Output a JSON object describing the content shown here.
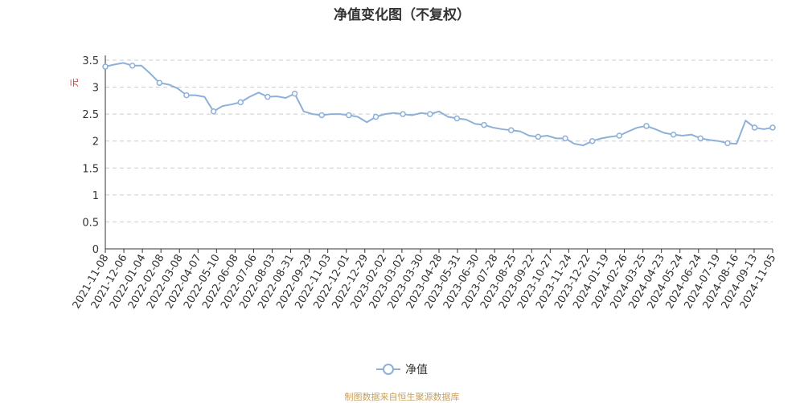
{
  "chart_data": {
    "type": "line",
    "title": "净值变化图（不复权）",
    "ylabel": "元",
    "ylim": [
      0,
      3.5
    ],
    "yticks": [
      "0",
      "0.5",
      "1",
      "1.5",
      "2",
      "2.5",
      "3",
      "3.5"
    ],
    "grid": "horizontal-dashed",
    "legend_position": "bottom-center",
    "x_tick_labels": [
      "2021-11-08",
      "2021-12-06",
      "2022-01-04",
      "2022-02-08",
      "2022-03-08",
      "2022-04-07",
      "2022-05-10",
      "2022-06-08",
      "2022-07-06",
      "2022-08-03",
      "2022-08-31",
      "2022-09-29",
      "2022-11-03",
      "2022-12-01",
      "2022-12-29",
      "2023-02-02",
      "2023-03-02",
      "2023-03-30",
      "2023-04-28",
      "2023-05-31",
      "2023-06-30",
      "2023-07-28",
      "2023-08-25",
      "2023-09-22",
      "2023-10-27",
      "2023-11-24",
      "2023-12-22",
      "2024-01-19",
      "2024-02-26",
      "2024-03-25",
      "2024-04-23",
      "2024-05-24",
      "2024-06-24",
      "2024-07-19",
      "2024-08-16",
      "2024-09-13",
      "2024-11-05"
    ],
    "series": [
      {
        "name": "净值",
        "color": "#8eb0d8",
        "values": [
          3.38,
          3.42,
          3.45,
          3.4,
          3.4,
          3.25,
          3.08,
          3.05,
          2.98,
          2.85,
          2.85,
          2.82,
          2.55,
          2.65,
          2.68,
          2.72,
          2.82,
          2.9,
          2.82,
          2.83,
          2.8,
          2.88,
          2.55,
          2.5,
          2.48,
          2.5,
          2.5,
          2.48,
          2.45,
          2.35,
          2.45,
          2.5,
          2.52,
          2.5,
          2.48,
          2.52,
          2.5,
          2.55,
          2.45,
          2.42,
          2.4,
          2.32,
          2.3,
          2.25,
          2.22,
          2.2,
          2.18,
          2.1,
          2.08,
          2.1,
          2.05,
          2.05,
          1.95,
          1.92,
          2.0,
          2.05,
          2.08,
          2.1,
          2.18,
          2.25,
          2.28,
          2.22,
          2.15,
          2.12,
          2.1,
          2.12,
          2.05,
          2.02,
          2.0,
          1.96,
          1.95,
          2.38,
          2.25,
          2.22,
          2.25
        ]
      }
    ]
  },
  "footer": {
    "source": "制图数据来自恒生聚源数据库"
  }
}
